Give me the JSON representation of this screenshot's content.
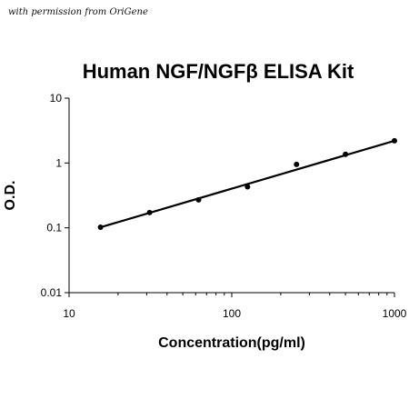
{
  "credit": "with permission from OriGene",
  "chart_data": {
    "type": "scatter",
    "title": "Human NGF/NGFβ ELISA Kit",
    "xlabel": "Concentration(pg/ml)",
    "ylabel": "O.D.",
    "x_scale": "log",
    "y_scale": "log",
    "xlim": [
      10,
      1000
    ],
    "ylim": [
      0.01,
      10
    ],
    "x_ticks": [
      10,
      100,
      1000
    ],
    "x_tick_labels": [
      "10",
      "100",
      "1000"
    ],
    "y_ticks": [
      10,
      1,
      0.1,
      0.01
    ],
    "y_tick_labels": [
      "10",
      "1",
      "0.1",
      "0.01"
    ],
    "grid": false,
    "points": [
      {
        "x": 15.6,
        "y": 0.102
      },
      {
        "x": 31.25,
        "y": 0.172
      },
      {
        "x": 62.5,
        "y": 0.27
      },
      {
        "x": 125,
        "y": 0.43
      },
      {
        "x": 250,
        "y": 0.95
      },
      {
        "x": 500,
        "y": 1.36
      },
      {
        "x": 1000,
        "y": 2.2
      }
    ],
    "fit_line": {
      "x": [
        15.6,
        1000
      ],
      "y": [
        0.102,
        2.2
      ]
    },
    "colors": {
      "points": "#000000",
      "line": "#000000",
      "axes": "#000000"
    }
  }
}
